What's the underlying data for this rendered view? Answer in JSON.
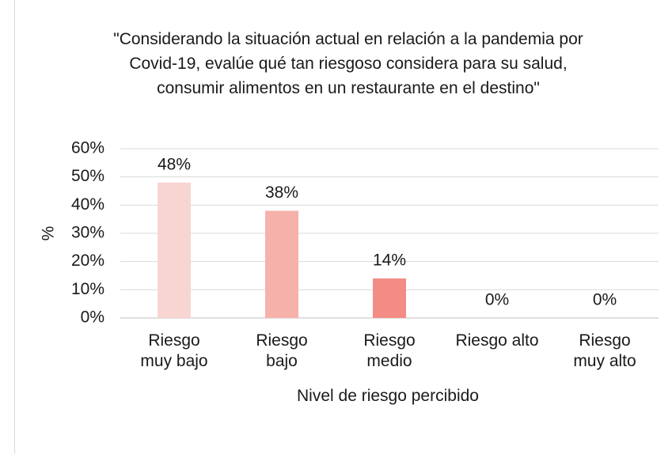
{
  "chart_data": {
    "type": "bar",
    "title": "\"Considerando la situación actual en relación a la pandemia por Covid-19, evalúe qué tan riesgoso considera para su salud, consumir alimentos en un restaurante en el destino\"",
    "x_label": "Nivel de riesgo percibido",
    "y_label": "%",
    "categories": [
      "Riesgo muy bajo",
      "Riesgo bajo",
      "Riesgo medio",
      "Riesgo alto",
      "Riesgo muy alto"
    ],
    "values": [
      48,
      38,
      14,
      0,
      0
    ],
    "value_labels": [
      "48%",
      "38%",
      "14%",
      "0%",
      "0%"
    ],
    "colors": [
      "#f9d5d1",
      "#f6b1ab",
      "#f28c84",
      "#ee6b62",
      "#e94b40"
    ],
    "ylim": [
      0,
      60
    ],
    "yticks": [
      {
        "value": 0,
        "label": "0%"
      },
      {
        "value": 10,
        "label": "10%"
      },
      {
        "value": 20,
        "label": "20%"
      },
      {
        "value": 30,
        "label": "30%"
      },
      {
        "value": 40,
        "label": "40%"
      },
      {
        "value": 50,
        "label": "50%"
      },
      {
        "value": 60,
        "label": "60%"
      }
    ],
    "grid": true
  }
}
